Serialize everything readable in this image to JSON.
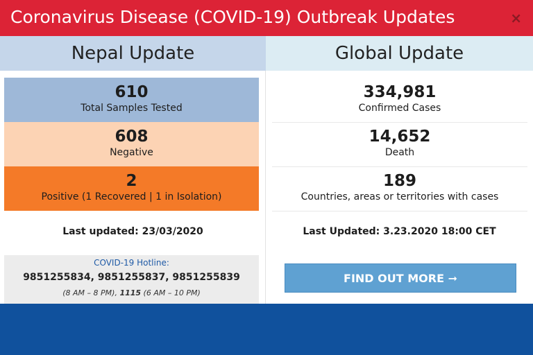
{
  "header": {
    "title": "Coronavirus Disease (COVID-19) Outbreak Updates",
    "close_label": "×"
  },
  "nepal": {
    "heading": "Nepal Update",
    "stats": [
      {
        "value": "610",
        "label": "Total Samples Tested",
        "color": "#9eb8d8"
      },
      {
        "value": "608",
        "label": "Negative",
        "color": "#fcd3b4"
      },
      {
        "value": "2",
        "label": "Positive (1 Recovered | 1 in Isolation)",
        "color": "#f47a28"
      }
    ],
    "last_updated": "Last updated: 23/03/2020",
    "hotline": {
      "label": "COVID-19 Hotline:",
      "numbers": "9851255834, 9851255837, 9851255839",
      "hours_prefix": "(8 AM – 8 PM), ",
      "alt_number": "1115",
      "hours_suffix": " (6 AM – 10 PM)"
    }
  },
  "global": {
    "heading": "Global Update",
    "stats": [
      {
        "value": "334,981",
        "label": "Confirmed Cases"
      },
      {
        "value": "14,652",
        "label": "Death"
      },
      {
        "value": "189",
        "label": "Countries, areas or territories with cases"
      }
    ],
    "last_updated": "Last Updated: 3.23.2020 18:00 CET",
    "button_label": "FIND OUT MORE",
    "button_icon": "arrow-right-icon",
    "button_arrow": "➞"
  },
  "colors": {
    "header": "#dc2336",
    "footer": "#10519d",
    "button": "#5fa1d2"
  }
}
